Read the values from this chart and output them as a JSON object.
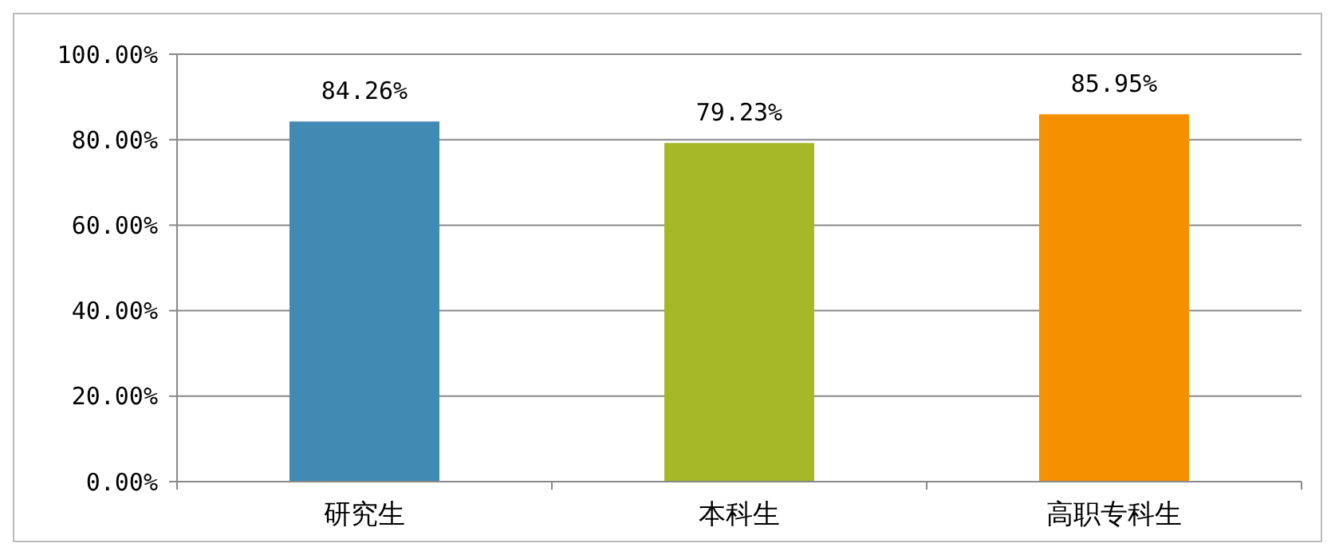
{
  "chart_data": {
    "type": "bar",
    "categories": [
      "研究生",
      "本科生",
      "高职专科生"
    ],
    "values": [
      84.26,
      79.23,
      85.95
    ],
    "colors": [
      "#418ab3",
      "#a6b727",
      "#f59100"
    ],
    "value_labels": [
      "84.26%",
      "79.23%",
      "85.95%"
    ],
    "ylim": [
      0,
      100
    ],
    "yticks": [
      {
        "value": 0,
        "label": "0.00%"
      },
      {
        "value": 20,
        "label": "20.00%"
      },
      {
        "value": 40,
        "label": "40.00%"
      },
      {
        "value": 60,
        "label": "60.00%"
      },
      {
        "value": 80,
        "label": "80.00%"
      },
      {
        "value": 100,
        "label": "100.00%"
      }
    ],
    "grid": "y"
  }
}
